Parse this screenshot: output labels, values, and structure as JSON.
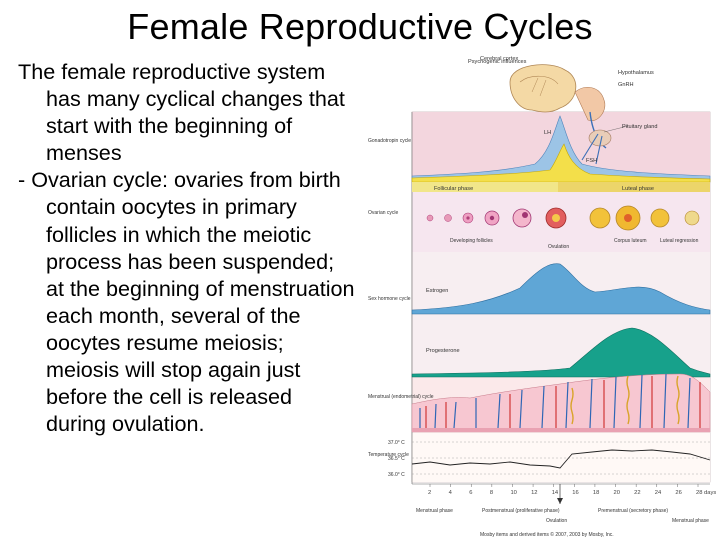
{
  "slide": {
    "title": "Female Reproductive Cycles",
    "paragraph_1": "The female reproductive system has many cyclical changes that start with the beginning of menses",
    "paragraph_2": "- Ovarian cycle: ovaries from birth contain oocytes in primary follicles in which the meiotic process has been suspended; at the beginning of menstruation each month, several of the oocytes resume meiosis; meiosis will stop again just before the cell is released during ovulation."
  },
  "figure": {
    "brain": {
      "psychogenic": "Psychogenic influences",
      "cerebral_cortex": "Cerebral cortex",
      "hypothalamus": "Hypothalamus",
      "gnrh": "GnRH",
      "pituitary": "Pituitary gland"
    },
    "rows": {
      "gonadotropin": "Gonadotropin cycle",
      "ovarian": "Ovarian cycle",
      "sex_hormone": "Sex hormone cycle",
      "menstrual": "Menstrual (endometrial) cycle",
      "temperature": "Temperature cycle"
    },
    "hormones": {
      "lh": "LH",
      "fsh": "FSH",
      "estrogen": "Estrogen",
      "progesterone": "Progesterone"
    },
    "ovarian_phases": {
      "follicular": "Follicular phase",
      "luteal": "Luteal phase",
      "developing": "Developing follicles",
      "ovulation": "Ovulation",
      "corpus": "Corpus luteum",
      "regression": "Luteal regression"
    },
    "temperatures": [
      "37.0° C",
      "36.5° C",
      "36.0° C"
    ],
    "days": [
      "2",
      "4",
      "6",
      "8",
      "10",
      "12",
      "14",
      "16",
      "18",
      "20",
      "22",
      "24",
      "26",
      "28 days"
    ],
    "phases_bottom": {
      "menstrual_1": "Menstrual phase",
      "postmenstrual": "Postmenstrual (proliferative phase)",
      "ovulation": "Ovulation",
      "premenstrual": "Premenstrual (secretory phase)",
      "menstrual_2": "Menstrual phase"
    },
    "credit": "Mosby items and derived items © 2007, 2003 by Mosby, Inc."
  }
}
